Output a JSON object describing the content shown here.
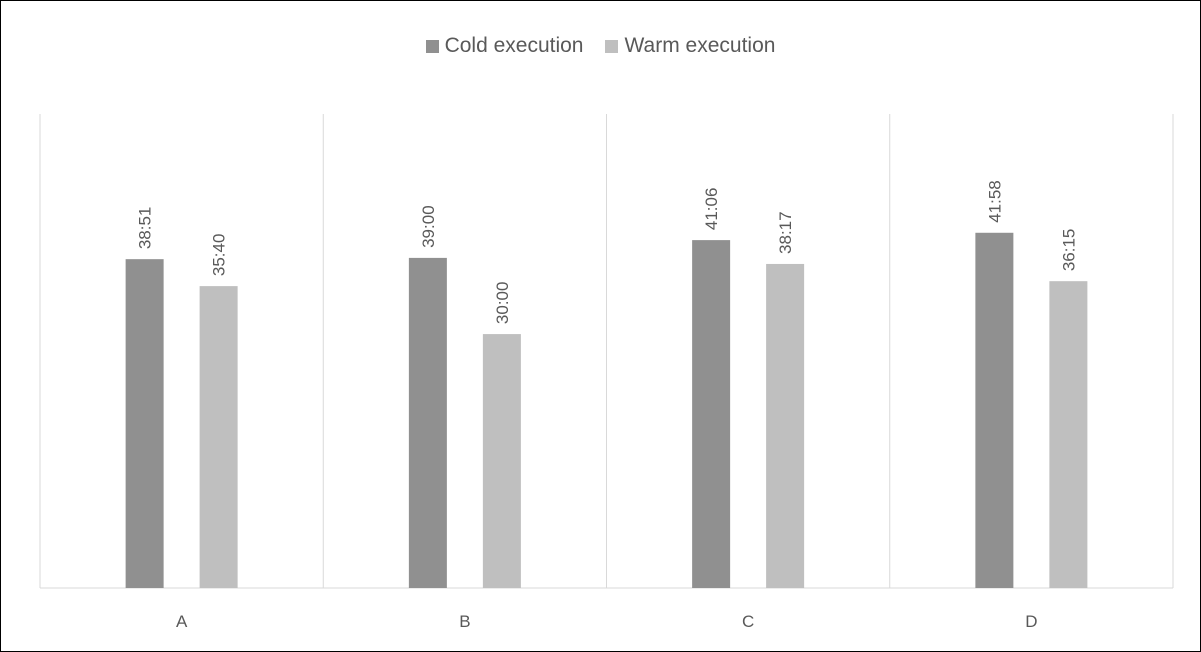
{
  "chart_data": {
    "type": "bar",
    "title": "",
    "xlabel": "",
    "ylabel": "",
    "categories": [
      "A",
      "B",
      "C",
      "D"
    ],
    "series": [
      {
        "name": "Cold execution",
        "color": "#909090",
        "values": [
          "38:51",
          "39:00",
          "41:06",
          "41:58"
        ],
        "minutes": [
          38.85,
          39.0,
          41.1,
          41.967
        ]
      },
      {
        "name": "Warm execution",
        "color": "#bfbfbf",
        "values": [
          "35:40",
          "30:00",
          "38:17",
          "36:15"
        ],
        "minutes": [
          35.667,
          30.0,
          38.283,
          36.25
        ]
      }
    ],
    "ylim": [
      0,
      56
    ],
    "grid": "vertical category separators",
    "legend": "top-center",
    "data_labels": "rotated vertical above bars"
  }
}
